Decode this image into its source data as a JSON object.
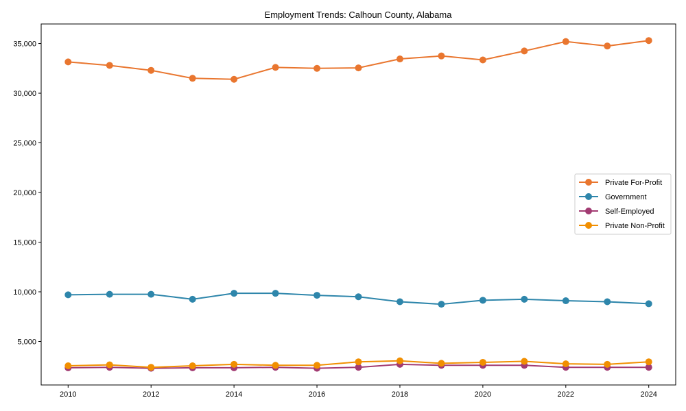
{
  "chart_data": {
    "type": "line",
    "title": "Employment Trends: Calhoun County, Alabama",
    "xlabel": "",
    "ylabel": "",
    "x": [
      2010,
      2011,
      2012,
      2013,
      2014,
      2015,
      2016,
      2017,
      2018,
      2019,
      2020,
      2021,
      2022,
      2023,
      2024
    ],
    "xticks": [
      2010,
      2012,
      2014,
      2016,
      2018,
      2020,
      2022,
      2024
    ],
    "xtick_labels": [
      "2010",
      "2012",
      "2014",
      "2016",
      "2018",
      "2020",
      "2022",
      "2024"
    ],
    "xlim": [
      2009.35,
      2024.65
    ],
    "ylim": [
      620,
      36970
    ],
    "yticks": [
      5000,
      10000,
      15000,
      20000,
      25000,
      30000,
      35000
    ],
    "ytick_labels": [
      "5,000",
      "10,000",
      "15,000",
      "20,000",
      "25,000",
      "30,000",
      "35,000"
    ],
    "grid": false,
    "legend_position": "center-right",
    "series": [
      {
        "name": "Private For-Profit",
        "color": "#E9762F",
        "values": [
          33150,
          32800,
          32300,
          31500,
          31400,
          32600,
          32500,
          32550,
          33450,
          33750,
          33350,
          34250,
          35200,
          34750,
          35300
        ]
      },
      {
        "name": "Government",
        "color": "#2E86AB",
        "values": [
          9700,
          9750,
          9750,
          9250,
          9850,
          9850,
          9650,
          9500,
          9000,
          8750,
          9150,
          9250,
          9100,
          9000,
          8800
        ]
      },
      {
        "name": "Self-Employed",
        "color": "#A23B72",
        "values": [
          2350,
          2400,
          2300,
          2350,
          2350,
          2400,
          2300,
          2400,
          2700,
          2600,
          2600,
          2600,
          2400,
          2400,
          2400
        ]
      },
      {
        "name": "Private Non-Profit",
        "color": "#F18F01",
        "values": [
          2550,
          2650,
          2400,
          2550,
          2700,
          2600,
          2600,
          2950,
          3050,
          2800,
          2900,
          3000,
          2750,
          2700,
          2950
        ]
      }
    ]
  }
}
